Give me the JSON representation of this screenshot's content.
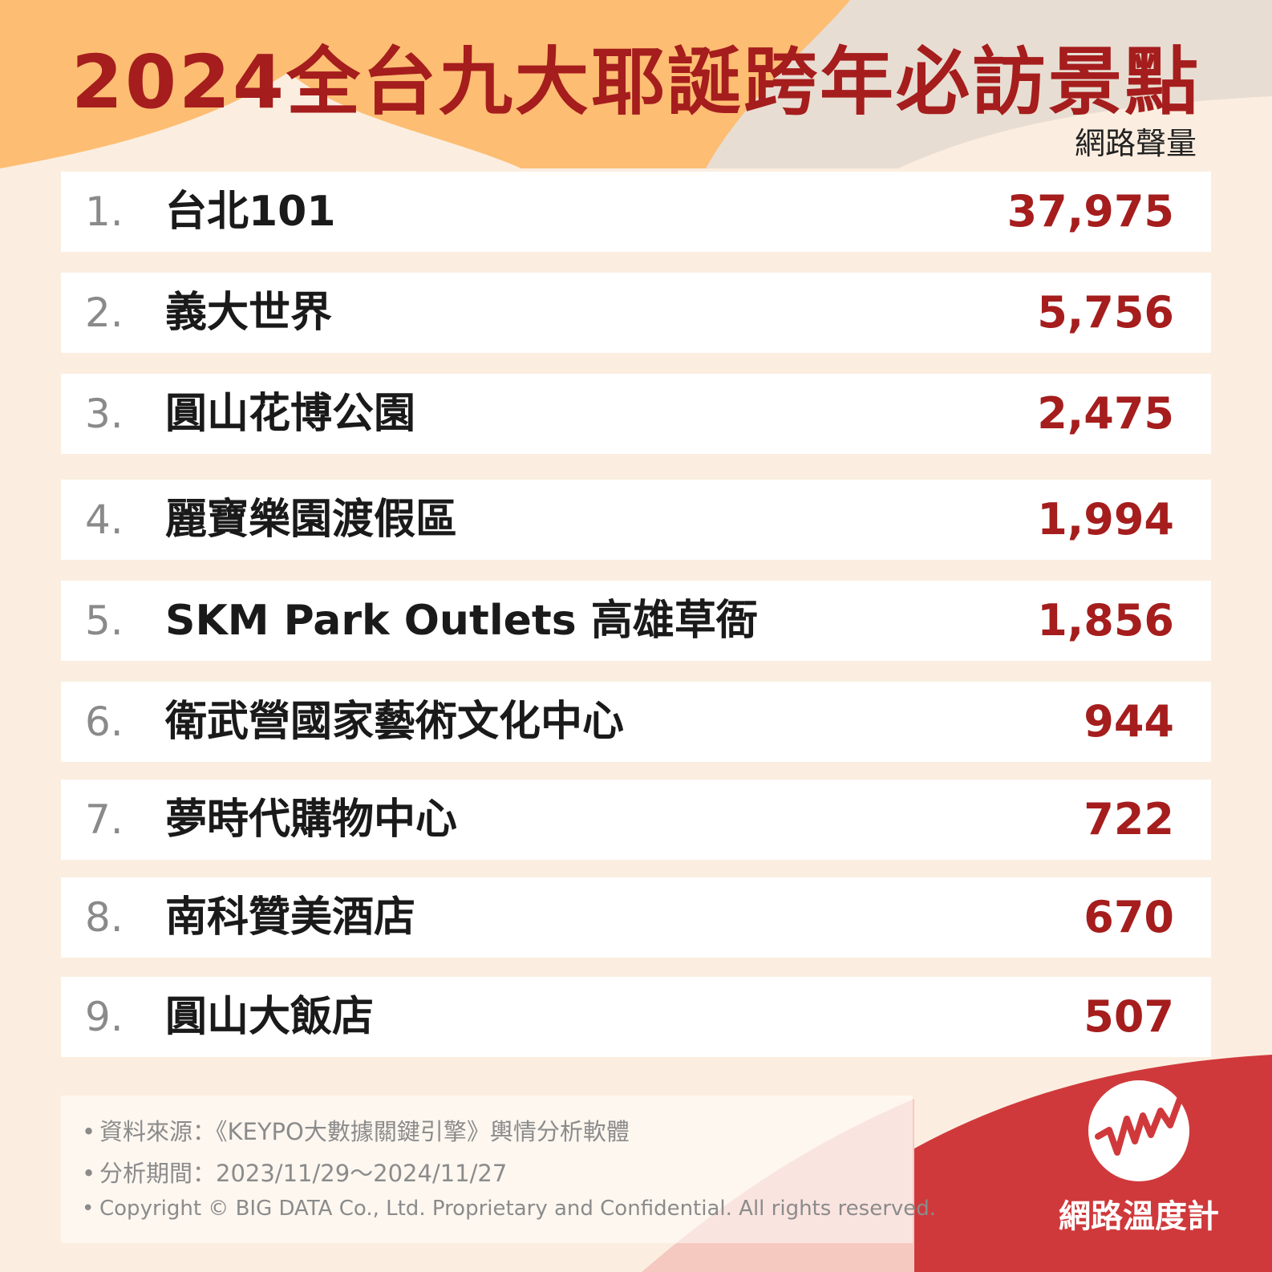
{
  "colors": {
    "background": "#fbeee0",
    "accent_red": "#a51d1d",
    "orange_shape": "#fdbd73",
    "gray_shape": "#e8ddd2",
    "footer_red": "#d0393b",
    "row_background": "#ffffff"
  },
  "title": "2024全台九大耶誕跨年必訪景點",
  "column_header": "網路聲量",
  "chart_data": {
    "type": "table",
    "title": "2024全台九大耶誕跨年必訪景點",
    "columns": [
      "",
      "",
      "網路聲量"
    ],
    "rows": [
      {
        "rank": "1.",
        "name": "台北101",
        "value": "37,975"
      },
      {
        "rank": "2.",
        "name": "義大世界",
        "value": "5,756"
      },
      {
        "rank": "3.",
        "name": "圓山花博公園",
        "value": "2,475"
      },
      {
        "rank": "4.",
        "name": "麗寶樂園渡假區",
        "value": "1,994"
      },
      {
        "rank": "5.",
        "name": "SKM Park Outlets 高雄草衙",
        "value": "1,856"
      },
      {
        "rank": "6.",
        "name": "衛武營國家藝術文化中心",
        "value": "944"
      },
      {
        "rank": "7.",
        "name": "夢時代購物中心",
        "value": "722"
      },
      {
        "rank": "8.",
        "name": "南科贊美酒店",
        "value": "670"
      },
      {
        "rank": "9.",
        "name": "圓山大飯店",
        "value": "507"
      }
    ]
  },
  "footnotes": [
    "資料來源：《KEYPO大數據關鍵引擎》輿情分析軟體",
    "分析期間：2023/11/29～2024/11/27",
    "Copyright © BIG DATA Co., Ltd. Proprietary and Confidential. All rights reserved."
  ],
  "brand": {
    "name": "網路溫度計",
    "logo_icon": "pulse-line-icon"
  }
}
